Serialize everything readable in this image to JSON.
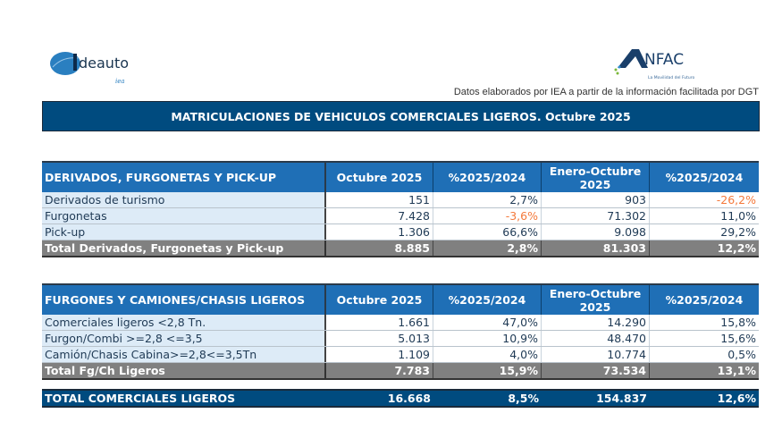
{
  "logos": {
    "left": "Ideauto iea",
    "right": "ANFAC La Movilidad del Futuro"
  },
  "source_note": "Datos elaborados por IEA a partir de la información facilitada por DGT",
  "title": "MATRICULACIONES DE VEHICULOS COMERCIALES LIGEROS. Octubre 2025",
  "colors": {
    "title_bg": "#004b7f",
    "header_bg": "#1f6fb6",
    "total_bg": "#808080",
    "label_bg": "#ddebf7",
    "negative": "#f4793b"
  },
  "table1": {
    "headers": [
      "DERIVADOS, FURGONETAS Y PICK-UP",
      "Octubre 2025",
      "%2025/2024",
      "Enero-Octubre 2025",
      "%2025/2024"
    ],
    "rows": [
      [
        "Derivados de turismo",
        "151",
        "2,7%",
        "903",
        "-26,2%"
      ],
      [
        "Furgonetas",
        "7.428",
        "-3,6%",
        "71.302",
        "11,0%"
      ],
      [
        "Pick-up",
        "1.306",
        "66,6%",
        "9.098",
        "29,2%"
      ]
    ],
    "total": [
      "Total Derivados, Furgonetas y Pick-up",
      "8.885",
      "2,8%",
      "81.303",
      "12,2%"
    ]
  },
  "table2": {
    "headers": [
      "FURGONES Y CAMIONES/CHASIS LIGEROS",
      "Octubre 2025",
      "%2025/2024",
      "Enero-Octubre 2025",
      "%2025/2024"
    ],
    "rows": [
      [
        "Comerciales ligeros <2,8 Tn.",
        "1.661",
        "47,0%",
        "14.290",
        "15,8%"
      ],
      [
        "Furgon/Combi >=2,8 <=3,5",
        "5.013",
        "10,9%",
        "48.470",
        "15,6%"
      ],
      [
        "Camión/Chasis Cabina>=2,8<=3,5Tn",
        "1.109",
        "4,0%",
        "10.774",
        "0,5%"
      ]
    ],
    "total": [
      "Total Fg/Ch Ligeros",
      "7.783",
      "15,9%",
      "73.534",
      "13,1%"
    ]
  },
  "grand_total": [
    "TOTAL COMERCIALES LIGEROS",
    "16.668",
    "8,5%",
    "154.837",
    "12,6%"
  ]
}
